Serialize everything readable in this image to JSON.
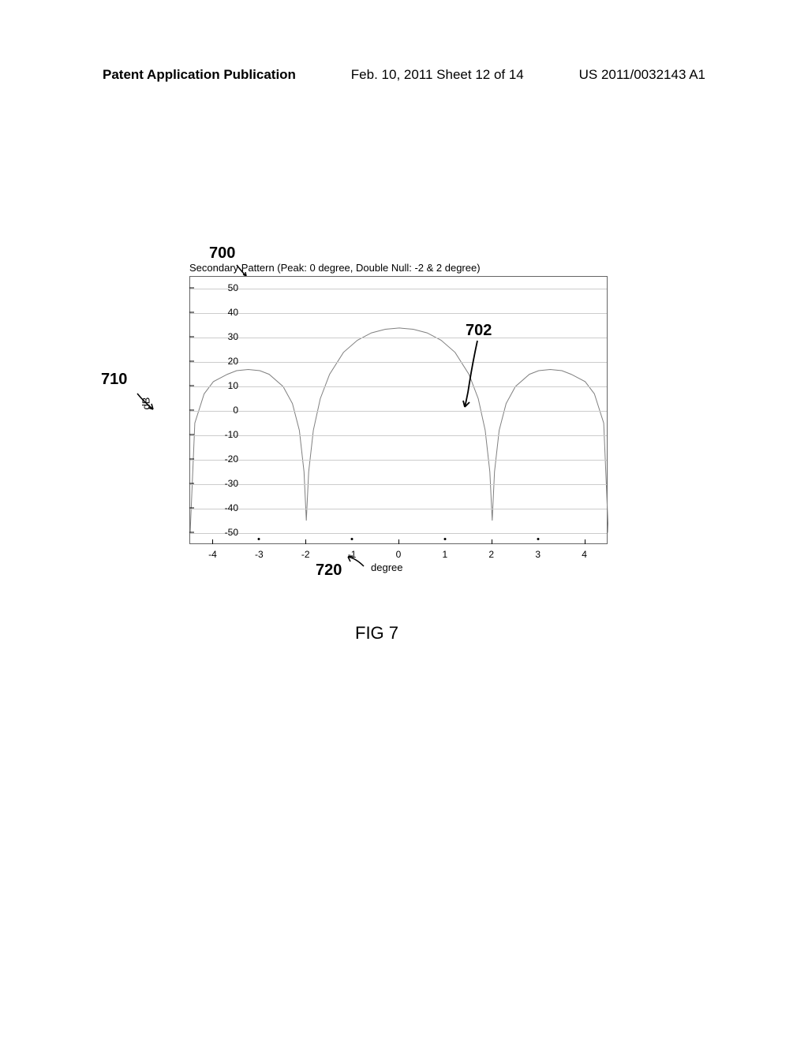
{
  "header": {
    "left": "Patent Application Publication",
    "center": "Feb. 10, 2011  Sheet 12 of 14",
    "right": "US 2011/0032143 A1"
  },
  "chart": {
    "type": "line",
    "title": "Secondary Pattern (Peak: 0 degree, Double Null: -2 & 2 degree)",
    "title_fontsize": 13,
    "xlabel": "degree",
    "ylabel": "dB",
    "label_fontsize": 13,
    "xlim": [
      -4.5,
      4.5
    ],
    "ylim": [
      -55,
      55
    ],
    "yticks": [
      -50,
      -40,
      -30,
      -20,
      -10,
      0,
      10,
      20,
      30,
      40,
      50
    ],
    "xticks": [
      -4,
      -3,
      -2,
      -1,
      0,
      1,
      2,
      3,
      4
    ],
    "ytick_step": 10,
    "xtick_step": 1,
    "grid_color": "#cccccc",
    "border_color": "#666666",
    "line_color": "#808080",
    "line_width": 1,
    "background_color": "#ffffff",
    "nulls_deg": [
      -4.5,
      -2,
      2,
      4.5
    ],
    "null_db": -50,
    "peaks": [
      {
        "x_deg": -3.25,
        "db": 17
      },
      {
        "x_deg": 0,
        "db": 34
      },
      {
        "x_deg": 3.25,
        "db": 17
      }
    ],
    "curve_points_deg_db": [
      [
        -4.5,
        -50
      ],
      [
        -4.4,
        -5
      ],
      [
        -4.2,
        7
      ],
      [
        -4.0,
        12
      ],
      [
        -3.7,
        15
      ],
      [
        -3.5,
        16.5
      ],
      [
        -3.25,
        17
      ],
      [
        -3.0,
        16.5
      ],
      [
        -2.8,
        15
      ],
      [
        -2.5,
        10
      ],
      [
        -2.3,
        3
      ],
      [
        -2.15,
        -8
      ],
      [
        -2.05,
        -25
      ],
      [
        -2.0,
        -45
      ],
      [
        -1.95,
        -25
      ],
      [
        -1.85,
        -8
      ],
      [
        -1.7,
        5
      ],
      [
        -1.5,
        15
      ],
      [
        -1.2,
        24
      ],
      [
        -0.9,
        29
      ],
      [
        -0.6,
        32
      ],
      [
        -0.3,
        33.5
      ],
      [
        0,
        34
      ],
      [
        0.3,
        33.5
      ],
      [
        0.6,
        32
      ],
      [
        0.9,
        29
      ],
      [
        1.2,
        24
      ],
      [
        1.5,
        15
      ],
      [
        1.7,
        5
      ],
      [
        1.85,
        -8
      ],
      [
        1.95,
        -25
      ],
      [
        2.0,
        -45
      ],
      [
        2.05,
        -25
      ],
      [
        2.15,
        -8
      ],
      [
        2.3,
        3
      ],
      [
        2.5,
        10
      ],
      [
        2.8,
        15
      ],
      [
        3.0,
        16.5
      ],
      [
        3.25,
        17
      ],
      [
        3.5,
        16.5
      ],
      [
        3.7,
        15
      ],
      [
        4.0,
        12
      ],
      [
        4.2,
        7
      ],
      [
        4.4,
        -5
      ],
      [
        4.5,
        -50
      ]
    ]
  },
  "refs": {
    "chart_ref": "700",
    "curve_ref": "702",
    "yaxis_ref": "710",
    "xaxis_ref": "720"
  },
  "figure_label": "FIG 7",
  "colors": {
    "text": "#000000",
    "background": "#ffffff"
  }
}
